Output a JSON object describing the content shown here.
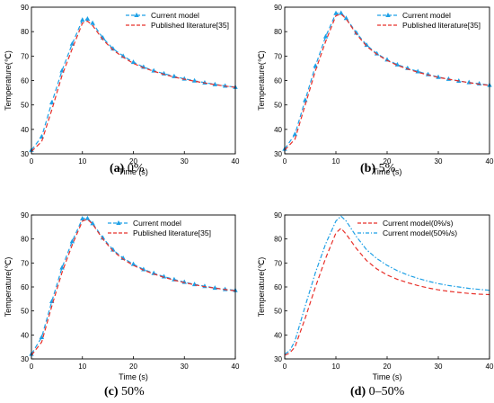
{
  "colors": {
    "current": "#1ea0e6",
    "published": "#e8302a",
    "red_dash": "#e8302a",
    "blue_dashdot": "#1ea0e6",
    "axis": "#000000"
  },
  "captions": [
    {
      "label": "(a)",
      "text": " 0%"
    },
    {
      "label": "(b)",
      "text": " 5%"
    },
    {
      "label": "(c)",
      "text": " 50%"
    },
    {
      "label": "(d)",
      "text": " 0–50%"
    }
  ],
  "chart_data": [
    {
      "type": "line",
      "xlabel": "Time (s)",
      "ylabel": "Temperature(℃)",
      "xlim": [
        0,
        40
      ],
      "ylim": [
        30,
        90
      ],
      "xticks": [
        0,
        10,
        20,
        30,
        40
      ],
      "yticks": [
        30,
        40,
        50,
        60,
        70,
        80,
        90
      ],
      "legend_position": "top-right",
      "series": [
        {
          "name": "Current model",
          "style": "dash-triangle",
          "color": "#1ea0e6",
          "x": [
            0,
            2,
            4,
            6,
            8,
            10,
            11,
            12,
            14,
            16,
            18,
            20,
            22,
            24,
            26,
            28,
            30,
            32,
            34,
            36,
            38,
            40
          ],
          "y": [
            31.5,
            37,
            51,
            64,
            75,
            84.8,
            85.2,
            83.5,
            77.5,
            73,
            70,
            67.5,
            65.5,
            64,
            62.8,
            61.7,
            60.7,
            59.9,
            59.1,
            58.4,
            57.8,
            57.3
          ]
        },
        {
          "name": "Published literature[35]",
          "style": "dash",
          "color": "#e8302a",
          "x": [
            0,
            2,
            4,
            6,
            8,
            10,
            11,
            12,
            14,
            16,
            18,
            20,
            22,
            24,
            26,
            28,
            30,
            32,
            34,
            36,
            38,
            40
          ],
          "y": [
            31,
            35,
            48,
            62,
            73,
            83.5,
            84.3,
            82.5,
            76.8,
            72.5,
            69.5,
            67,
            65.2,
            63.8,
            62.5,
            61.4,
            60.5,
            59.7,
            59,
            58.3,
            57.7,
            57.2
          ]
        }
      ]
    },
    {
      "type": "line",
      "xlabel": "Time (s)",
      "ylabel": "Temperature(℃)",
      "xlim": [
        0,
        40
      ],
      "ylim": [
        30,
        90
      ],
      "xticks": [
        0,
        10,
        20,
        30,
        40
      ],
      "yticks": [
        30,
        40,
        50,
        60,
        70,
        80,
        90
      ],
      "legend_position": "top-right",
      "series": [
        {
          "name": "Current model",
          "style": "dash-triangle",
          "color": "#1ea0e6",
          "x": [
            0,
            2,
            4,
            6,
            8,
            10,
            11,
            12,
            14,
            16,
            18,
            20,
            22,
            24,
            26,
            28,
            30,
            32,
            34,
            36,
            38,
            40
          ],
          "y": [
            32,
            38,
            52,
            66,
            78,
            87.5,
            87.6,
            85.5,
            79.5,
            74.5,
            71,
            68.5,
            66.5,
            65,
            63.7,
            62.5,
            61.4,
            60.6,
            59.8,
            59.2,
            58.7,
            58.1
          ]
        },
        {
          "name": "Published literature[35]",
          "style": "dash",
          "color": "#e8302a",
          "x": [
            0,
            2,
            4,
            6,
            8,
            10,
            11,
            12,
            14,
            16,
            18,
            20,
            22,
            24,
            26,
            28,
            30,
            32,
            34,
            36,
            38,
            40
          ],
          "y": [
            31.5,
            36,
            50,
            64,
            76,
            86.5,
            87.2,
            85.2,
            79,
            74,
            70.7,
            68.2,
            66.2,
            64.7,
            63.4,
            62.3,
            61.3,
            60.5,
            59.8,
            59.1,
            58.5,
            58
          ]
        }
      ]
    },
    {
      "type": "line",
      "xlabel": "Time (s)",
      "ylabel": "Temperature(℃)",
      "xlim": [
        0,
        40
      ],
      "ylim": [
        30,
        90
      ],
      "xticks": [
        0,
        10,
        20,
        30,
        40
      ],
      "yticks": [
        30,
        40,
        50,
        60,
        70,
        80,
        90
      ],
      "legend_position": "top-center",
      "series": [
        {
          "name": "Current model",
          "style": "dash-triangle",
          "color": "#1ea0e6",
          "x": [
            0,
            2,
            4,
            6,
            8,
            10,
            11,
            12,
            14,
            16,
            18,
            20,
            22,
            24,
            26,
            28,
            30,
            32,
            34,
            36,
            38,
            40
          ],
          "y": [
            32,
            39,
            54,
            68,
            79,
            88.5,
            88.6,
            86.5,
            80.5,
            75.5,
            72,
            69.5,
            67.3,
            65.7,
            64.3,
            63.1,
            62,
            61.1,
            60.3,
            59.6,
            59,
            58.6
          ]
        },
        {
          "name": "Published literature[35]",
          "style": "dash",
          "color": "#e8302a",
          "x": [
            0,
            2,
            4,
            6,
            8,
            10,
            11,
            12,
            14,
            16,
            18,
            20,
            22,
            24,
            26,
            28,
            30,
            32,
            34,
            36,
            38,
            40
          ],
          "y": [
            31.5,
            37,
            52,
            66,
            77.5,
            87.5,
            88.2,
            86.2,
            80,
            75,
            71.5,
            69,
            67,
            65.4,
            64,
            62.8,
            61.8,
            60.9,
            60.1,
            59.5,
            58.9,
            58.4
          ]
        }
      ]
    },
    {
      "type": "line",
      "xlabel": "Time (s)",
      "ylabel": "Temperature(℃)",
      "xlim": [
        0,
        40
      ],
      "ylim": [
        30,
        90
      ],
      "xticks": [
        0,
        10,
        20,
        30,
        40
      ],
      "yticks": [
        30,
        40,
        50,
        60,
        70,
        80,
        90
      ],
      "legend_position": "top-right",
      "series": [
        {
          "name": "Current model(0%/s)",
          "style": "dash",
          "color": "#e8302a",
          "x": [
            0,
            1,
            2,
            4,
            6,
            8,
            10,
            11,
            12,
            14,
            16,
            18,
            20,
            22,
            24,
            26,
            28,
            30,
            32,
            34,
            36,
            38,
            40
          ],
          "y": [
            31.5,
            32.5,
            35,
            47,
            60,
            72,
            82.5,
            84.5,
            82,
            76,
            71,
            67.5,
            65,
            63.2,
            61.8,
            60.6,
            59.6,
            58.8,
            58.2,
            57.7,
            57.3,
            57,
            56.8
          ]
        },
        {
          "name": "Current model(50%/s)",
          "style": "dashdot",
          "color": "#1ea0e6",
          "x": [
            0,
            1,
            2,
            4,
            6,
            8,
            10,
            11,
            12,
            14,
            16,
            18,
            20,
            22,
            24,
            26,
            28,
            30,
            32,
            34,
            36,
            38,
            40
          ],
          "y": [
            32,
            33.5,
            37.5,
            52,
            66,
            78,
            87.5,
            89.5,
            87.5,
            81,
            75.5,
            71.8,
            69,
            66.8,
            65,
            63.6,
            62.4,
            61.4,
            60.6,
            60,
            59.4,
            59,
            58.6
          ]
        }
      ]
    }
  ]
}
